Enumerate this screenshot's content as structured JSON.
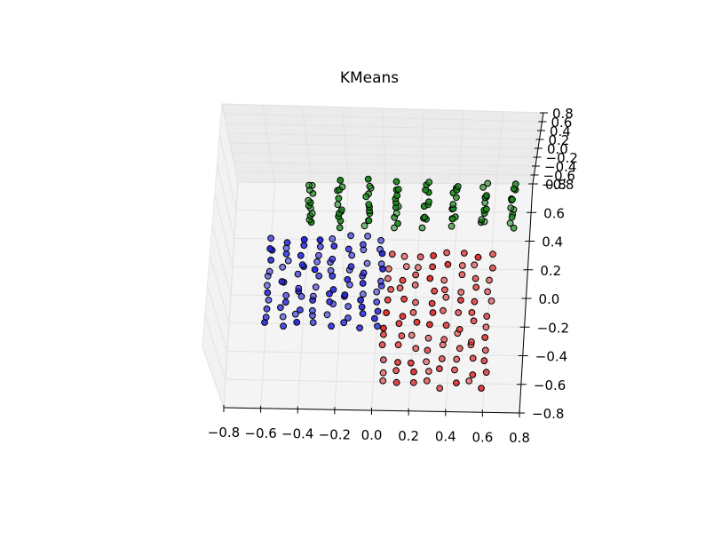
{
  "chart_data": {
    "type": "scatter",
    "title": "KMeans",
    "xlabel": "",
    "ylabel": "",
    "zlabel": "",
    "xlim": [
      -0.8,
      0.8
    ],
    "ylim": [
      -0.8,
      0.8
    ],
    "zlim": [
      -0.8,
      0.8
    ],
    "x_tick_labels": [
      "−0.8",
      "−0.6",
      "−0.4",
      "−0.2",
      "0.0",
      "0.2",
      "0.4",
      "0.6",
      "0.8"
    ],
    "y_tick_labels": [
      "0.8",
      "0.6",
      "0.4",
      "0.2",
      "0.0",
      "−0.2",
      "−0.4",
      "−0.6",
      "−0.8"
    ],
    "z_tick_labels": [
      "0.8",
      "0.6",
      "0.4",
      "0.2",
      "0.0",
      "−0.2",
      "−0.4",
      "−0.6",
      "−0.8"
    ],
    "grid": true,
    "projection": "3d",
    "series": [
      {
        "color": "#ff0000",
        "x_range": [
          0.05,
          0.6
        ],
        "y_range": [
          -0.6,
          0.3
        ]
      },
      {
        "color": "#0000ff",
        "x_range": [
          -0.6,
          0.0
        ],
        "y_range": [
          -0.2,
          0.4
        ]
      },
      {
        "color": "#008000",
        "x_range": [
          -0.4,
          0.7
        ],
        "y_range": [
          0.5,
          0.8
        ]
      }
    ]
  }
}
